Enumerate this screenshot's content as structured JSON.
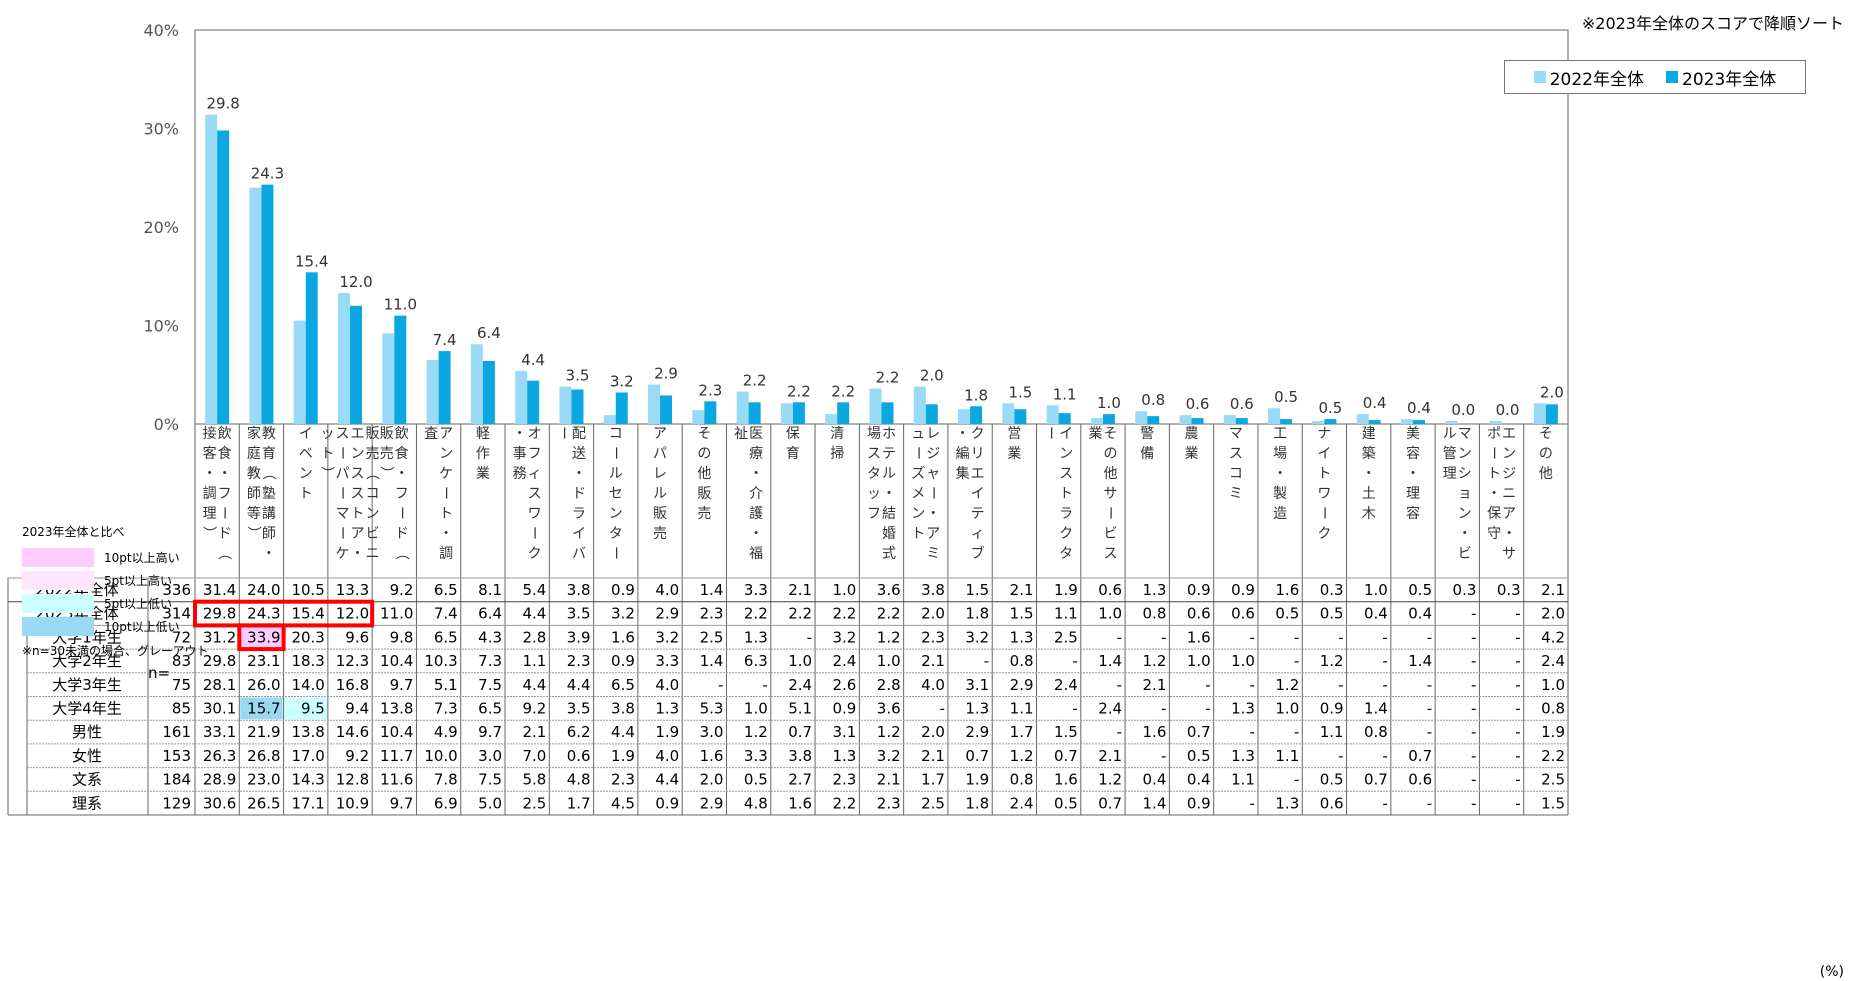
{
  "note": "※2023年全体のスコアで降順ソート",
  "pct_unit": "(%)",
  "n_label": "n=",
  "footnote": "※n=30未満の場合、グレーアウト",
  "comparison_legend": {
    "title": "2023年全体と比べ",
    "items": [
      {
        "label": "10pt以上高い",
        "color": "#ffccff"
      },
      {
        "label": "5pt以上高い",
        "color": "#ffe6ff"
      },
      {
        "label": "5pt以上低い",
        "color": "#ccffff"
      },
      {
        "label": "10pt以上低い",
        "color": "#99d9f4"
      }
    ]
  },
  "chart_data": {
    "type": "bar",
    "ylim": [
      0,
      40
    ],
    "yticks": [
      "0%",
      "10%",
      "20%",
      "30%",
      "40%"
    ],
    "categories": [
      "飲食・フード（接客・調理）",
      "教育（塾講師・家庭教師等）",
      "イベント",
      "販売（コンビニエンスストア・スーパーマーケット）",
      "飲食・フード（販売）",
      "アンケート・調査",
      "軽作業",
      "オフィスワーク・事務",
      "配送・ドライバー",
      "コールセンター",
      "アパレル販売",
      "その他販売",
      "医療・介護・福祉",
      "保育",
      "清掃",
      "ホテル・結婚式場スタッフ",
      "レジャー・アミューズメント",
      "クリエイティブ・編集",
      "営業",
      "インストラクター",
      "その他サービス業",
      "警備",
      "農業",
      "マスコミ",
      "工場・製造",
      "ナイトワーク",
      "建築・土木",
      "美容・理容",
      "マンション・ビル管理",
      "エンジニア・サポート・保守",
      "その他"
    ],
    "series": [
      {
        "name": "2022年全体",
        "color": "#99dbf7",
        "values": [
          31.4,
          24.0,
          10.5,
          13.3,
          9.2,
          6.5,
          8.1,
          5.4,
          3.8,
          0.9,
          4.0,
          1.4,
          3.3,
          2.1,
          1.0,
          3.6,
          3.8,
          1.5,
          2.1,
          1.9,
          0.6,
          1.3,
          0.9,
          0.9,
          1.6,
          0.3,
          1.0,
          0.5,
          0.3,
          0.3,
          2.1
        ]
      },
      {
        "name": "2023年全体",
        "color": "#0ba7e0",
        "values": [
          29.8,
          24.3,
          15.4,
          12.0,
          11.0,
          7.4,
          6.4,
          4.4,
          3.5,
          3.2,
          2.9,
          2.3,
          2.2,
          2.2,
          2.2,
          2.2,
          2.0,
          1.8,
          1.5,
          1.1,
          1.0,
          0.8,
          0.6,
          0.6,
          0.5,
          0.5,
          0.4,
          0.4,
          0.0,
          0.0,
          2.0
        ],
        "labels": [
          "29.8",
          "24.3",
          "15.4",
          "12.0",
          "11.0",
          "7.4",
          "6.4",
          "4.4",
          "3.5",
          "3.2",
          "2.9",
          "2.3",
          "2.2",
          "2.2",
          "2.2",
          "2.2",
          "2.0",
          "1.8",
          "1.5",
          "1.1",
          "1.0",
          "0.8",
          "0.6",
          "0.6",
          "0.5",
          "0.5",
          "0.4",
          "0.4",
          "0.0",
          "0.0",
          "2.0"
        ]
      }
    ],
    "table": {
      "rows": [
        {
          "label": "2022年全体",
          "n": "336",
          "values": [
            "31.4",
            "24.0",
            "10.5",
            "13.3",
            "9.2",
            "6.5",
            "8.1",
            "5.4",
            "3.8",
            "0.9",
            "4.0",
            "1.4",
            "3.3",
            "2.1",
            "1.0",
            "3.6",
            "3.8",
            "1.5",
            "2.1",
            "1.9",
            "0.6",
            "1.3",
            "0.9",
            "0.9",
            "1.6",
            "0.3",
            "1.0",
            "0.5",
            "0.3",
            "0.3",
            "2.1"
          ]
        },
        {
          "label": "2023年全体",
          "n": "314",
          "values": [
            "29.8",
            "24.3",
            "15.4",
            "12.0",
            "11.0",
            "7.4",
            "6.4",
            "4.4",
            "3.5",
            "3.2",
            "2.9",
            "2.3",
            "2.2",
            "2.2",
            "2.2",
            "2.2",
            "2.0",
            "1.8",
            "1.5",
            "1.1",
            "1.0",
            "0.8",
            "0.6",
            "0.6",
            "0.5",
            "0.5",
            "0.4",
            "0.4",
            "-",
            "-",
            "2.0"
          ]
        },
        {
          "label": "大学1年生",
          "n": "72",
          "values": [
            "31.2",
            "33.9",
            "20.3",
            "9.6",
            "9.8",
            "6.5",
            "4.3",
            "2.8",
            "3.9",
            "1.6",
            "3.2",
            "2.5",
            "1.3",
            "-",
            "3.2",
            "1.2",
            "2.3",
            "3.2",
            "1.3",
            "2.5",
            "-",
            "-",
            "1.6",
            "-",
            "-",
            "-",
            "-",
            "-",
            "-",
            "-",
            "4.2"
          ],
          "hl": {
            "1": "#ffccff"
          }
        },
        {
          "label": "大学2年生",
          "n": "83",
          "values": [
            "29.8",
            "23.1",
            "18.3",
            "12.3",
            "10.4",
            "10.3",
            "7.3",
            "1.1",
            "2.3",
            "0.9",
            "3.3",
            "1.4",
            "6.3",
            "1.0",
            "2.4",
            "1.0",
            "2.1",
            "-",
            "0.8",
            "-",
            "1.4",
            "1.2",
            "1.0",
            "1.0",
            "-",
            "1.2",
            "-",
            "1.4",
            "-",
            "-",
            "2.4"
          ]
        },
        {
          "label": "大学3年生",
          "n": "75",
          "values": [
            "28.1",
            "26.0",
            "14.0",
            "16.8",
            "9.7",
            "5.1",
            "7.5",
            "4.4",
            "4.4",
            "6.5",
            "4.0",
            "-",
            "-",
            "2.4",
            "2.6",
            "2.8",
            "4.0",
            "3.1",
            "2.9",
            "2.4",
            "-",
            "2.1",
            "-",
            "-",
            "1.2",
            "-",
            "-",
            "-",
            "-",
            "-",
            "1.0"
          ]
        },
        {
          "label": "大学4年生",
          "n": "85",
          "values": [
            "30.1",
            "15.7",
            "9.5",
            "9.4",
            "13.8",
            "7.3",
            "6.5",
            "9.2",
            "3.5",
            "3.8",
            "1.3",
            "5.3",
            "1.0",
            "5.1",
            "0.9",
            "3.6",
            "-",
            "1.3",
            "1.1",
            "-",
            "2.4",
            "-",
            "-",
            "1.3",
            "1.0",
            "0.9",
            "1.4",
            "-",
            "-",
            "-",
            "0.8"
          ],
          "hl": {
            "1": "#99d9f4",
            "2": "#ccffff"
          }
        },
        {
          "label": "男性",
          "n": "161",
          "values": [
            "33.1",
            "21.9",
            "13.8",
            "14.6",
            "10.4",
            "4.9",
            "9.7",
            "2.1",
            "6.2",
            "4.4",
            "1.9",
            "3.0",
            "1.2",
            "0.7",
            "3.1",
            "1.2",
            "2.0",
            "2.9",
            "1.7",
            "1.5",
            "-",
            "1.6",
            "0.7",
            "-",
            "-",
            "1.1",
            "0.8",
            "-",
            "-",
            "-",
            "1.9"
          ]
        },
        {
          "label": "女性",
          "n": "153",
          "values": [
            "26.3",
            "26.8",
            "17.0",
            "9.2",
            "11.7",
            "10.0",
            "3.0",
            "7.0",
            "0.6",
            "1.9",
            "4.0",
            "1.6",
            "3.3",
            "3.8",
            "1.3",
            "3.2",
            "2.1",
            "0.7",
            "1.2",
            "0.7",
            "2.1",
            "-",
            "0.5",
            "1.3",
            "1.1",
            "-",
            "-",
            "0.7",
            "-",
            "-",
            "2.2"
          ]
        },
        {
          "label": "文系",
          "n": "184",
          "values": [
            "28.9",
            "23.0",
            "14.3",
            "12.8",
            "11.6",
            "7.8",
            "7.5",
            "5.8",
            "4.8",
            "2.3",
            "4.4",
            "2.0",
            "0.5",
            "2.7",
            "2.3",
            "2.1",
            "1.7",
            "1.9",
            "0.8",
            "1.6",
            "1.2",
            "0.4",
            "0.4",
            "1.1",
            "-",
            "0.5",
            "0.7",
            "0.6",
            "-",
            "-",
            "2.5"
          ]
        },
        {
          "label": "理系",
          "n": "129",
          "values": [
            "30.6",
            "26.5",
            "17.1",
            "10.9",
            "9.7",
            "6.9",
            "5.0",
            "2.5",
            "1.7",
            "4.5",
            "0.9",
            "2.9",
            "4.8",
            "1.6",
            "2.2",
            "2.3",
            "2.5",
            "1.8",
            "2.4",
            "0.5",
            "0.7",
            "1.4",
            "0.9",
            "-",
            "1.3",
            "0.6",
            "-",
            "-",
            "-",
            "-",
            "1.5"
          ]
        }
      ]
    }
  }
}
